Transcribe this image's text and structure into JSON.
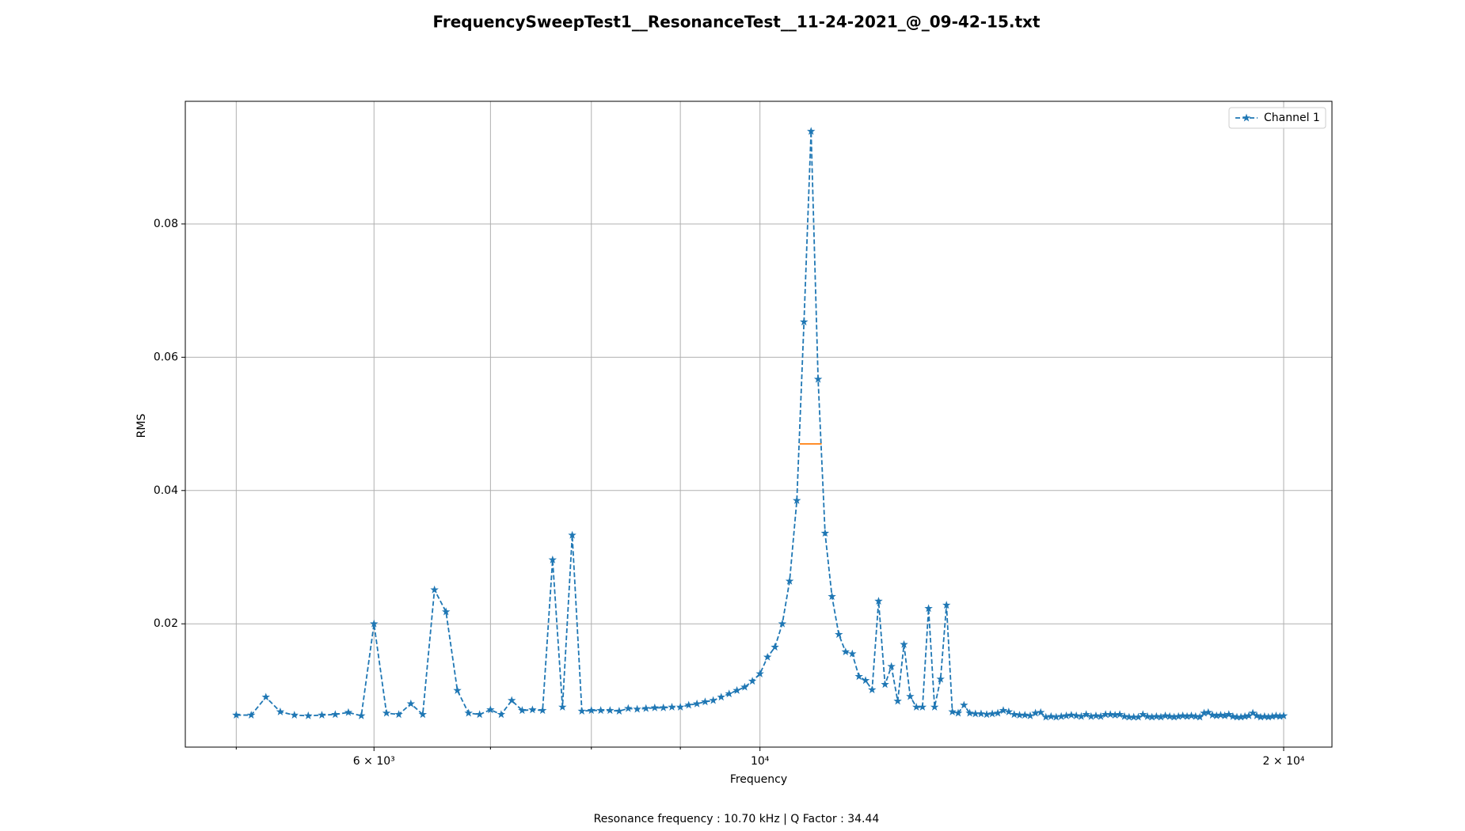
{
  "chart_data": {
    "type": "line",
    "title": "FrequencySweepTest1__ResonanceTest__11-24-2021_@_09-42-15.txt",
    "x_label": "Frequency",
    "y_label": "RMS",
    "footer": "Resonance frequency : 10.70 kHz | Q Factor : 34.44",
    "x_scale": "log",
    "grid": true,
    "legend_position": "upper right",
    "xlim": [
      4674,
      21320
    ],
    "ylim": [
      0.0015,
      0.0984
    ],
    "xticks": [
      {
        "value": 6000,
        "label": "6 × 10³"
      },
      {
        "value": 10000,
        "label": "10⁴"
      },
      {
        "value": 20000,
        "label": "2 × 10⁴"
      }
    ],
    "xminorticks": [
      5000,
      7000,
      8000,
      9000
    ],
    "yticks": [
      0.02,
      0.04,
      0.06,
      0.08
    ],
    "x": [
      5000,
      5100,
      5200,
      5300,
      5400,
      5500,
      5600,
      5700,
      5800,
      5900,
      6000,
      6100,
      6200,
      6300,
      6400,
      6500,
      6600,
      6700,
      6800,
      6900,
      7000,
      7100,
      7200,
      7300,
      7400,
      7500,
      7600,
      7700,
      7800,
      7900,
      8000,
      8100,
      8200,
      8300,
      8400,
      8500,
      8600,
      8700,
      8800,
      8900,
      9000,
      9100,
      9200,
      9300,
      9400,
      9500,
      9600,
      9700,
      9800,
      9900,
      10000,
      10100,
      10200,
      10300,
      10400,
      10500,
      10600,
      10700,
      10800,
      10900,
      11000,
      11100,
      11200,
      11300,
      11400,
      11500,
      11600,
      11700,
      11800,
      11900,
      12000,
      12100,
      12200,
      12300,
      12400,
      12500,
      12600,
      12700,
      12800,
      12900,
      13000,
      13100,
      13200,
      13300,
      13400,
      13500,
      13600,
      13700,
      13800,
      13900,
      14000,
      14100,
      14200,
      14300,
      14400,
      14500,
      14600,
      14700,
      14800,
      14900,
      15000,
      15100,
      15200,
      15300,
      15400,
      15500,
      15600,
      15700,
      15800,
      15900,
      16000,
      16100,
      16200,
      16300,
      16400,
      16500,
      16600,
      16700,
      16800,
      16900,
      17000,
      17100,
      17200,
      17300,
      17400,
      17500,
      17600,
      17700,
      17800,
      17900,
      18000,
      18100,
      18200,
      18300,
      18400,
      18500,
      18600,
      18700,
      18800,
      18900,
      19000,
      19100,
      19200,
      19300,
      19400,
      19500,
      19600,
      19700,
      19800,
      19900,
      20000
    ],
    "series": [
      {
        "name": "Channel 1",
        "color": "#1f77b4",
        "values": [
          0.0063,
          0.0063,
          0.009,
          0.0068,
          0.0063,
          0.0062,
          0.0063,
          0.0064,
          0.0067,
          0.0062,
          0.02,
          0.0066,
          0.0064,
          0.008,
          0.0064,
          0.0251,
          0.0218,
          0.01,
          0.0066,
          0.0064,
          0.0071,
          0.0064,
          0.0085,
          0.007,
          0.0071,
          0.007,
          0.0296,
          0.0075,
          0.0333,
          0.0069,
          0.007,
          0.007,
          0.007,
          0.0069,
          0.0073,
          0.0072,
          0.0073,
          0.0074,
          0.0074,
          0.0075,
          0.0075,
          0.0078,
          0.008,
          0.0083,
          0.0085,
          0.009,
          0.0095,
          0.01,
          0.0105,
          0.0114,
          0.0125,
          0.015,
          0.0165,
          0.02,
          0.0264,
          0.0385,
          0.0653,
          0.0939,
          0.0567,
          0.0336,
          0.0241,
          0.0184,
          0.0158,
          0.0155,
          0.0121,
          0.0115,
          0.0101,
          0.0234,
          0.0109,
          0.0136,
          0.0084,
          0.0169,
          0.0091,
          0.0075,
          0.0075,
          0.0223,
          0.0075,
          0.0117,
          0.0228,
          0.0068,
          0.0066,
          0.0078,
          0.0066,
          0.0065,
          0.0065,
          0.0064,
          0.0065,
          0.0066,
          0.007,
          0.0068,
          0.0064,
          0.0063,
          0.0063,
          0.0062,
          0.0066,
          0.0067,
          0.006,
          0.0061,
          0.006,
          0.0061,
          0.0062,
          0.0063,
          0.0062,
          0.0061,
          0.0064,
          0.0061,
          0.0062,
          0.0061,
          0.0064,
          0.0064,
          0.0063,
          0.0064,
          0.0061,
          0.006,
          0.006,
          0.006,
          0.0064,
          0.0061,
          0.006,
          0.0061,
          0.006,
          0.0062,
          0.0061,
          0.006,
          0.0061,
          0.0062,
          0.0061,
          0.0062,
          0.0061,
          0.006,
          0.0066,
          0.0067,
          0.0063,
          0.0062,
          0.0063,
          0.0062,
          0.0064,
          0.0061,
          0.006,
          0.006,
          0.0061,
          0.0062,
          0.0066,
          0.0062,
          0.006,
          0.0061,
          0.006,
          0.0061,
          0.0062,
          0.0061,
          0.0062
        ]
      }
    ],
    "bandwidth_line": {
      "x": [
        10540,
        10851
      ],
      "y": 0.047,
      "color": "#ff7f0e"
    }
  }
}
